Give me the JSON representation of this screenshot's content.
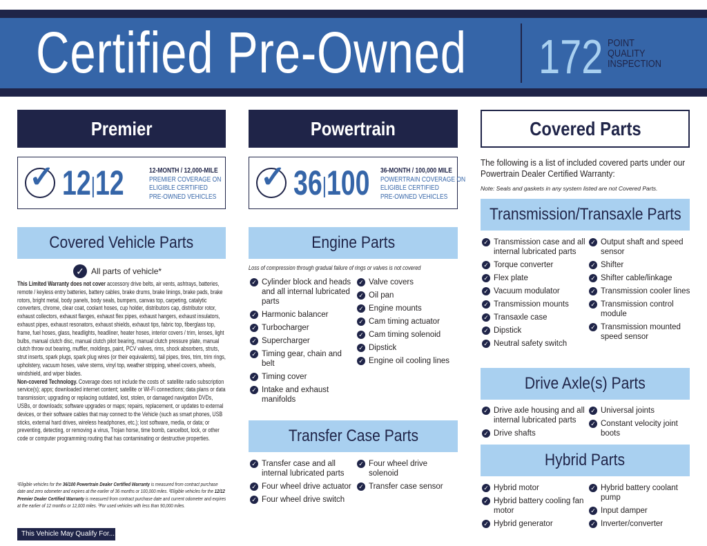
{
  "banner": {
    "title": "Certified Pre-Owned",
    "points": "172",
    "points_label": [
      "POINT",
      "QUALITY",
      "INSPECTION"
    ]
  },
  "colors": {
    "navy": "#1f2448",
    "blue": "#3565a8",
    "light_blue": "#a9d0f0"
  },
  "premier": {
    "header": "Premier",
    "number_a": "12",
    "number_b": "12",
    "line1": "12-MONTH / 12,000-MILE",
    "line2": "PREMIER COVERAGE ON",
    "line3": "ELIGIBLE CERTIFIED",
    "line4": "PRE-OWNED VEHICLES",
    "section": "Covered Vehicle Parts",
    "all_parts": "All parts of vehicle*",
    "exclusion_bold": "This Limited Warranty does not cover",
    "exclusion_text": " accessory drive belts, air vents, ashtrays, batteries, remote / keyless entry batteries, battery cables, brake drums, brake linings, brake pads, brake rotors, bright metal, body panels, body seals, bumpers, canvas top, carpeting, catalytic converters, chrome, clear coat, coolant hoses, cup holder, distributors cap, distributor rotor, exhaust collectors, exhaust flanges, exhaust flex pipes, exhaust hangers, exhaust insulators, exhaust pipes, exhaust resonators, exhaust shields, exhaust tips, fabric top, fiberglass top, frame, fuel hoses, glass, headlights, headliner, heater hoses, interior covers / trim, lenses, light bulbs, manual clutch disc, manual clutch pilot bearing, manual clutch pressure plate, manual clutch throw out bearing, muffler, moldings, paint, PCV valves, rims, shock absorbers, struts, strut inserts, spark plugs, spark plug wires (or their equivalents), tail pipes, tires, trim, trim rings, upholstery, vacuum hoses, valve stems, vinyl top, weather stripping, wheel covers, wheels, windshield, and wiper blades.",
    "tech_bold": "Non-covered Technology.",
    "tech_text": " Coverage does not include the costs of: satellite radio subscription service(s); apps; downloaded internet content; satellite or Wi-Fi connections; data plans or data transmission; upgrading or replacing outdated, lost, stolen, or damaged navigation DVDs, USBs, or downloads; software upgrades or maps; repairs, replacement, or updates to external devices, or their software cables that may connect to the Vehicle (such as smart phones, USB sticks, external hard drives, wireless headphones, etc.); lost software, media, or data; or preventing, detecting, or removing a virus, Trojan horse, time bomb, cancelbot, lock, or other code or computer programming routing that has contaminating or destructive properties.",
    "fn1a": "¹Eligible vehicles for the ",
    "fn1b": "36/100 Powertrain Dealer Certified Warranty",
    "fn1c": " is measured from contract purchase date and zero odometer and expires at the earlier of 36 months or 100,000 miles. ²Eligible vehicles for the ",
    "fn1d": "12/12 Premier Dealer Certified Warranty",
    "fn1e": " is measured from contract purchase date and current odometer and expires at the earlier of 12 months or 12,000 miles. ³For used vehicles with less than 90,000 miles.",
    "button": "This Vehicle May Qualify For..."
  },
  "powertrain": {
    "header": "Powertrain",
    "number_a": "36",
    "number_b": "100",
    "line1": "36-MONTH / 100,000 MILE",
    "line2": "POWERTRAIN COVERAGE ON",
    "line3": "ELIGIBLE CERTIFIED",
    "line4": "PRE-OWNED VEHICLES",
    "engine": {
      "title": "Engine Parts",
      "note": "Loss of compression through gradual failure of rings or valves is not covered",
      "left": [
        "Cylinder block and heads and all internal lubricated parts",
        "Harmonic balancer",
        "Turbocharger",
        "Supercharger",
        "Timing gear, chain and belt",
        "Timing cover",
        "Intake and exhaust manifolds"
      ],
      "right": [
        "Valve covers",
        "Oil pan",
        "Engine mounts",
        "Cam timing actuator",
        "Cam timing solenoid",
        "Dipstick",
        "Engine oil cooling lines"
      ]
    },
    "transfer": {
      "title": "Transfer Case Parts",
      "left": [
        "Transfer case and all internal lubricated parts",
        "Four wheel drive actuator",
        "Four wheel drive switch"
      ],
      "right": [
        "Four wheel drive solenoid",
        "Transfer case sensor"
      ]
    }
  },
  "covered": {
    "header": "Covered Parts",
    "intro": "The following is a list of included covered parts under our Powertrain Dealer Certified Warranty:",
    "note": "Note: Seals and gaskets in any system listed are not Covered Parts.",
    "transmission": {
      "title": "Transmission/Transaxle Parts",
      "left": [
        "Transmission case and all internal lubricated parts",
        "Torque converter",
        "Flex plate",
        "Vacuum modulator",
        "Transmission mounts",
        "Transaxle case",
        "Dipstick",
        "Neutral safety switch"
      ],
      "right": [
        "Output shaft and speed sensor",
        "Shifter",
        "Shifter cable/linkage",
        "Transmission cooler lines",
        "Transmission control module",
        "Transmission mounted speed sensor"
      ]
    },
    "axle": {
      "title": "Drive Axle(s) Parts",
      "left": [
        "Drive axle housing and all internal lubricated parts",
        "Drive shafts"
      ],
      "right": [
        "Universal joints",
        "Constant velocity joint boots"
      ]
    },
    "hybrid": {
      "title": "Hybrid Parts",
      "left": [
        "Hybrid motor",
        "Hybrid battery cooling fan motor",
        "Hybrid generator"
      ],
      "right": [
        "Hybrid battery coolant pump",
        "Input damper",
        "Inverter/converter"
      ]
    }
  }
}
